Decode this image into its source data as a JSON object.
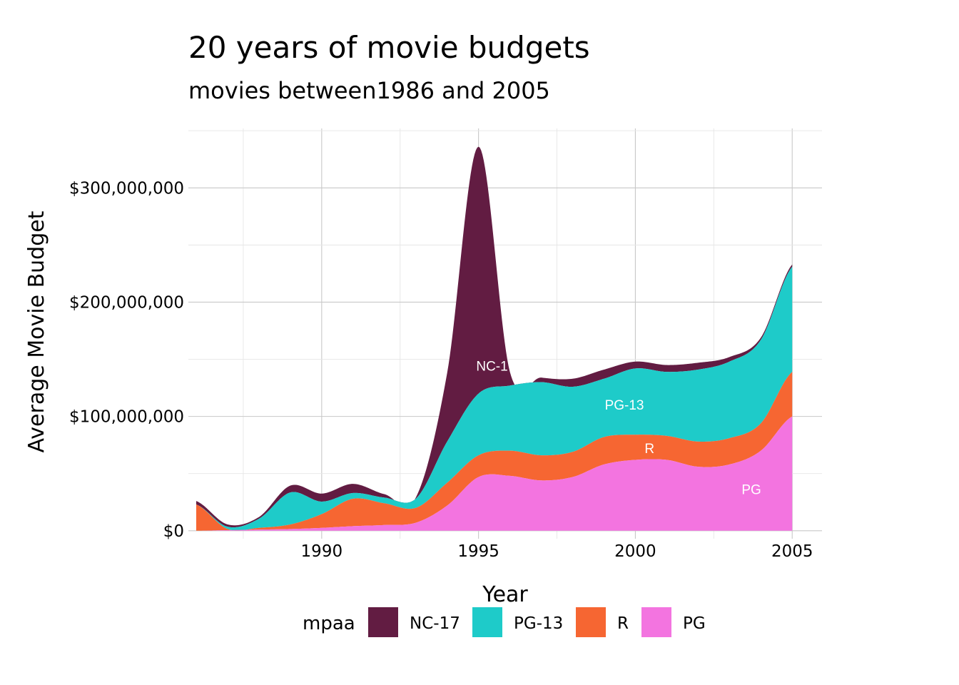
{
  "chart_data": {
    "type": "area",
    "stacked": true,
    "smoothed": true,
    "title": "20 years of movie budgets",
    "subtitle": "movies between1986 and 2005",
    "xlabel": "Year",
    "ylabel": "Average Movie Budget",
    "xlim": [
      1985.75,
      2005.95
    ],
    "ylim": [
      -7000000,
      352000000
    ],
    "x_ticks": [
      1990,
      1995,
      2000,
      2005
    ],
    "x_tick_labels": [
      "1990",
      "1995",
      "2000",
      "2005"
    ],
    "y_ticks": [
      0,
      100000000,
      200000000,
      300000000
    ],
    "y_tick_labels": [
      "$0",
      "$100,000,000",
      "$200,000,000",
      "$300,000,000"
    ],
    "grid": true,
    "legend": {
      "title": "mpaa",
      "position": "bottom",
      "entries": [
        "NC-17",
        "PG-13",
        "R",
        "PG"
      ]
    },
    "x": [
      1986,
      1987,
      1988,
      1989,
      1990,
      1991,
      1992,
      1993,
      1994,
      1995,
      1996,
      1997,
      1998,
      1999,
      2000,
      2001,
      2002,
      2003,
      2004,
      2005
    ],
    "series": [
      {
        "name": "PG",
        "color": "#f374e0",
        "values": [
          0,
          500000,
          1000000,
          1500000,
          2500000,
          4000000,
          5000000,
          7000000,
          22000000,
          47000000,
          48000000,
          44000000,
          47000000,
          58000000,
          62000000,
          62000000,
          56000000,
          58000000,
          70000000,
          100000000
        ]
      },
      {
        "name": "R",
        "color": "#f66632",
        "values": [
          23000000,
          1000000,
          1500000,
          4000000,
          12000000,
          24000000,
          19000000,
          13000000,
          20000000,
          19000000,
          22000000,
          22000000,
          22000000,
          24000000,
          22000000,
          21000000,
          22000000,
          23000000,
          24000000,
          39000000
        ]
      },
      {
        "name": "PG-13",
        "color": "#1ecbc9",
        "values": [
          0,
          2000000,
          8000000,
          28000000,
          11000000,
          5000000,
          5000000,
          8000000,
          36000000,
          54000000,
          57000000,
          64000000,
          57000000,
          51000000,
          58000000,
          56000000,
          63000000,
          67000000,
          73000000,
          92000000
        ]
      },
      {
        "name": "NC-17",
        "color": "#621c42",
        "values": [
          3000000,
          2000000,
          1500000,
          6000000,
          7000000,
          8000000,
          3000000,
          1000000,
          60000000,
          216000000,
          12000000,
          4000000,
          7000000,
          8000000,
          6000000,
          6000000,
          6000000,
          4000000,
          2000000,
          2000000
        ]
      }
    ],
    "stack_order": [
      "PG",
      "R",
      "PG-13",
      "NC-17"
    ],
    "area_labels": [
      {
        "text": "NC-17",
        "x": 1995.55,
        "y": 140000000
      },
      {
        "text": "PG-13",
        "x": 1999.65,
        "y": 106000000
      },
      {
        "text": "R",
        "x": 2000.45,
        "y": 68000000
      },
      {
        "text": "PG",
        "x": 2003.7,
        "y": 32000000
      }
    ]
  }
}
